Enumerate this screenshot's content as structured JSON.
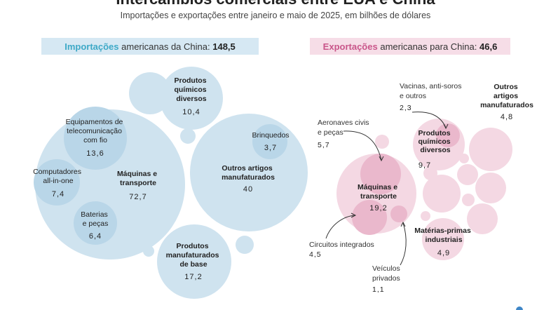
{
  "header": {
    "title": "Intercâmbios comerciais entre EUA e China",
    "subtitle": "Importações e exportações entre janeiro e maio de 2025, em bilhões de dólares"
  },
  "colors": {
    "imports_fill": "#cfe3ef",
    "imports_fill_dark": "#b9d6e8",
    "imports_header_bg": "#d6e8f3",
    "imports_accent": "#3ea9c7",
    "exports_fill": "#f4d8e3",
    "exports_fill_dark": "#eab8cc",
    "exports_header_bg": "#f6dde7",
    "exports_accent": "#c9568a"
  },
  "chart_data": [
    {
      "type": "bubble",
      "panel": "imports",
      "title_key": "Importações",
      "title_rest": "americanas da China:",
      "total": "148,5",
      "unit": "bilhões de dólares",
      "categories": [
        {
          "label": [
            "Máquinas e",
            "transporte"
          ],
          "value": 72.7,
          "value_text": "72,7"
        },
        {
          "label": [
            "Equipamentos de",
            "telecomunicação",
            "com fio"
          ],
          "value": 13.6,
          "value_text": "13,6",
          "parent": "Máquinas e transporte"
        },
        {
          "label": [
            "Computadores",
            "all-in-one"
          ],
          "value": 7.4,
          "value_text": "7,4",
          "parent": "Máquinas e transporte"
        },
        {
          "label": [
            "Baterias",
            "e peças"
          ],
          "value": 6.4,
          "value_text": "6,4",
          "parent": "Máquinas e transporte"
        },
        {
          "label": [
            "Outros artigos",
            "manufaturados"
          ],
          "value": 40,
          "value_text": "40"
        },
        {
          "label": [
            "Brinquedos"
          ],
          "value": 3.7,
          "value_text": "3,7",
          "parent": "Outros artigos manufaturados"
        },
        {
          "label": [
            "Produtos",
            "manufaturados",
            "de base"
          ],
          "value": 17.2,
          "value_text": "17,2"
        },
        {
          "label": [
            "Produtos",
            "químicos",
            "diversos"
          ],
          "value": 10.4,
          "value_text": "10,4"
        }
      ]
    },
    {
      "type": "bubble",
      "panel": "exports",
      "title_key": "Exportações",
      "title_rest": "americanas para China:",
      "total": "46,6",
      "unit": "bilhões de dólares",
      "categories": [
        {
          "label": [
            "Máquinas e",
            "transporte"
          ],
          "value": 19.2,
          "value_text": "19,2"
        },
        {
          "label": [
            "Aeronaves civis",
            "e peças"
          ],
          "value": 5.7,
          "value_text": "5,7",
          "parent": "Máquinas e transporte"
        },
        {
          "label": [
            "Circuitos integrados"
          ],
          "value": 4.5,
          "value_text": "4,5",
          "parent": "Máquinas e transporte"
        },
        {
          "label": [
            "Veículos",
            "privados"
          ],
          "value": 1.1,
          "value_text": "1,1",
          "parent": "Máquinas e transporte"
        },
        {
          "label": [
            "Produtos",
            "químicos",
            "diversos"
          ],
          "value": 9.7,
          "value_text": "9,7"
        },
        {
          "label": [
            "Vacinas, anti-soros",
            "e outros"
          ],
          "value": 2.3,
          "value_text": "2,3",
          "parent": "Produtos químicos diversos"
        },
        {
          "label": [
            "Matérias-primas",
            "industriais"
          ],
          "value": 4.9,
          "value_text": "4,9"
        },
        {
          "label": [
            "Outros",
            "artigos",
            "manufaturados"
          ],
          "value": 4.8,
          "value_text": "4,8"
        }
      ]
    }
  ]
}
